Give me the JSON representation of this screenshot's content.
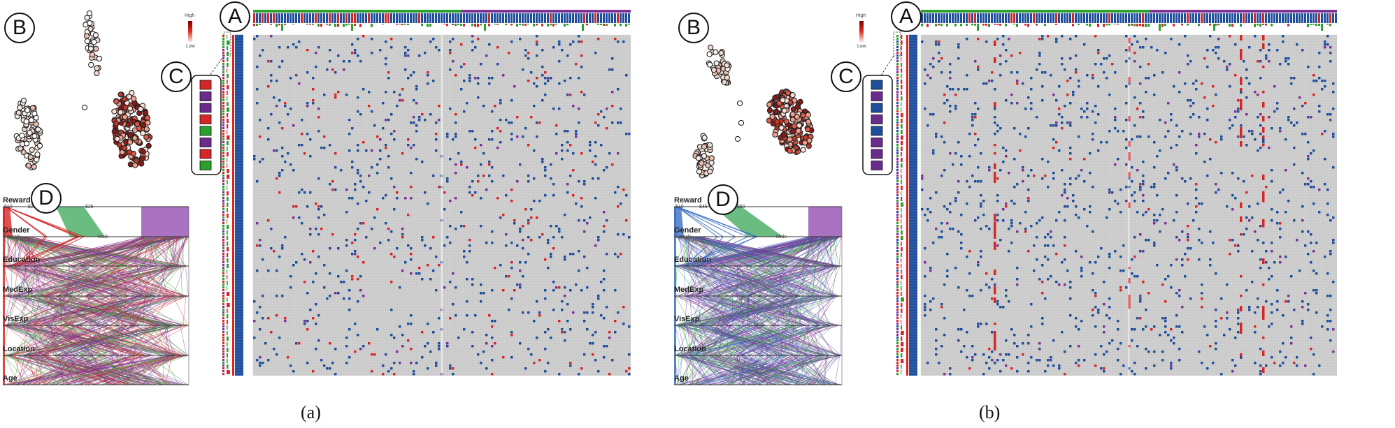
{
  "panels": [
    {
      "id": "a",
      "caption": "(a)",
      "labels": {
        "A": "A",
        "B": "B",
        "C": "C",
        "D": "D"
      },
      "legend": {
        "high": "High",
        "low": "Low"
      },
      "reward_ticks": [
        "$10",
        "$20",
        "$25"
      ],
      "gender_ticks": [
        "Female",
        "Male"
      ],
      "zoom_colors": [
        "#d62728",
        "#6a2c8c",
        "#6a2c8c",
        "#d62728",
        "#2ca02c",
        "#6a2c8c",
        "#d62728",
        "#2ca02c"
      ],
      "seed": 7,
      "red_prob": 0.09
    },
    {
      "id": "b",
      "caption": "(b)",
      "labels": {
        "A": "A",
        "B": "B",
        "C": "C",
        "D": "D"
      },
      "legend": {
        "high": "High",
        "low": "Low"
      },
      "reward_ticks": [
        "$10",
        "$45",
        "$50"
      ],
      "gender_ticks": [
        "Female",
        "Male"
      ],
      "zoom_colors": [
        "#1f4e9c",
        "#6a2c8c",
        "#1f4e9c",
        "#6a2c8c",
        "#1f4e9c",
        "#6a2c8c",
        "#6a2c8c",
        "#6a2c8c"
      ],
      "seed": 19,
      "red_prob": 0.04
    }
  ],
  "axes": [
    "Reward",
    "Gender",
    "Education",
    "MedExp",
    "VisExp",
    "Location",
    "Age"
  ],
  "colors": {
    "red": "#d62728",
    "purple": "#7b3294",
    "green": "#2ca02c",
    "blue": "#1f4e9c",
    "grid": "#c8c8c8"
  }
}
